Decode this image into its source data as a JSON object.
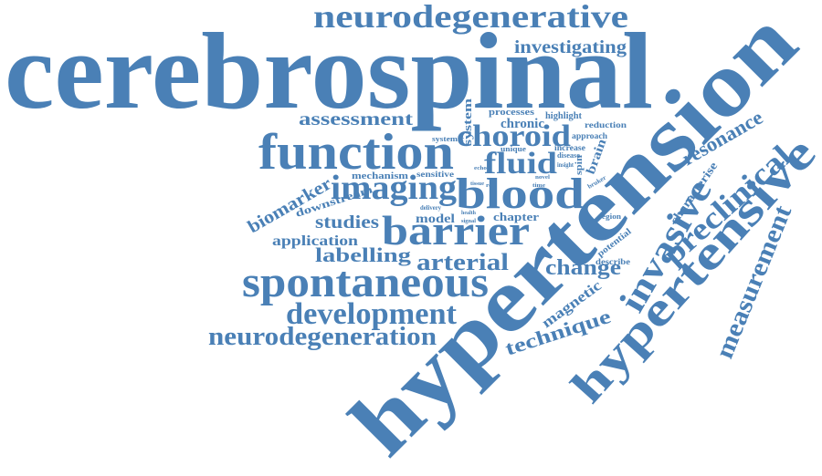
{
  "words": [
    "cerebrospinal",
    "hypertension",
    "neurodegenerative",
    "investigating",
    "function",
    "assessment",
    "choroid",
    "fluid",
    "imaging",
    "blood",
    "barrier",
    "spontaneous",
    "development",
    "neurodegeneration",
    "labelling",
    "arterial",
    "change",
    "studies",
    "application",
    "model",
    "chapter",
    "biomarker",
    "downstream",
    "mechanism",
    "sensitive",
    "systemic",
    "system",
    "processes",
    "chronic",
    "highlight",
    "reduction",
    "approach",
    "unique",
    "increase",
    "disease",
    "insight",
    "brain",
    "spin",
    "resonance",
    "preclinical",
    "invasive",
    "hypertensive",
    "measurement",
    "characterise",
    "technique",
    "magnetic",
    "potential",
    "describe",
    "region",
    "bruker",
    "delivery",
    "health",
    "signal",
    "tissue",
    "echo",
    "role",
    "time",
    "novel"
  ]
}
